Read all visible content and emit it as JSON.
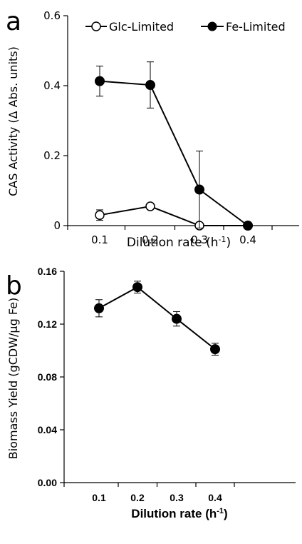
{
  "chart_data": [
    {
      "panel_label": "a",
      "type": "line",
      "xlabel": "Dilution rate (h",
      "xlabel_sup": "-1",
      "xlabel_tail": ")",
      "ylabel": "CAS Activity (Δ Abs. units)",
      "categories": [
        "0.1",
        "0.2",
        "0.3",
        "0.4"
      ],
      "x": [
        0.1,
        0.2,
        0.3,
        0.4
      ],
      "ylim": [
        0,
        0.6
      ],
      "yticks": [
        "0",
        "0.2",
        "0.4",
        "0.6"
      ],
      "legend_position": "top",
      "series": [
        {
          "name": "Glc-Limited",
          "marker": "open-circle",
          "values": [
            0.03,
            0.055,
            0.0,
            0.0
          ],
          "error": [
            0.015,
            0.0,
            0.0,
            0.0
          ]
        },
        {
          "name": "Fe-Limited",
          "marker": "filled-circle",
          "values": [
            0.413,
            0.402,
            0.103,
            0.0
          ],
          "error": [
            0.043,
            0.066,
            0.11,
            0.0
          ]
        }
      ]
    },
    {
      "panel_label": "b",
      "type": "line",
      "xlabel": "Dilution rate (h",
      "xlabel_sup": "-1",
      "xlabel_tail": ")",
      "ylabel": "Biomass Yield (gCDW/µg Fe)",
      "categories": [
        "0.1",
        "0.2",
        "0.3",
        "0.4"
      ],
      "x": [
        0.1,
        0.2,
        0.3,
        0.4
      ],
      "ylim": [
        0,
        0.16
      ],
      "yticks": [
        "0.00",
        "0.04",
        "0.08",
        "0.12",
        "0.16"
      ],
      "series": [
        {
          "marker": "filled-circle",
          "values": [
            0.132,
            0.148,
            0.124,
            0.101
          ],
          "error": [
            0.0065,
            0.0045,
            0.0055,
            0.0045
          ]
        }
      ]
    }
  ]
}
